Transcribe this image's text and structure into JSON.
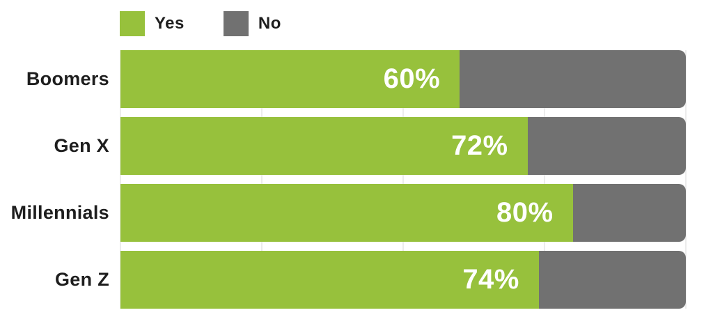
{
  "colors": {
    "yes": "#97c13c",
    "no": "#717171",
    "text": "#1e1e1e",
    "value_label": "#ffffff",
    "gridline": "#ececec",
    "background": "#ffffff"
  },
  "legend": {
    "items": [
      {
        "label": "Yes",
        "color_key": "yes"
      },
      {
        "label": "No",
        "color_key": "no"
      }
    ]
  },
  "chart_data": {
    "type": "bar",
    "orientation": "horizontal",
    "stacked": true,
    "title": "",
    "xlabel": "",
    "ylabel": "",
    "categories": [
      "Boomers",
      "Gen X",
      "Millennials",
      "Gen Z"
    ],
    "series": [
      {
        "name": "Yes",
        "color": "#97c13c",
        "values": [
          60,
          72,
          80,
          74
        ]
      },
      {
        "name": "No",
        "color": "#717171",
        "values": [
          40,
          28,
          20,
          26
        ]
      }
    ],
    "value_labels": [
      "60%",
      "72%",
      "80%",
      "74%"
    ],
    "xlim": [
      0,
      100
    ],
    "grid_percents": [
      0,
      25,
      50,
      75,
      100
    ],
    "grid": "vertical",
    "legend_position": "top-left"
  }
}
